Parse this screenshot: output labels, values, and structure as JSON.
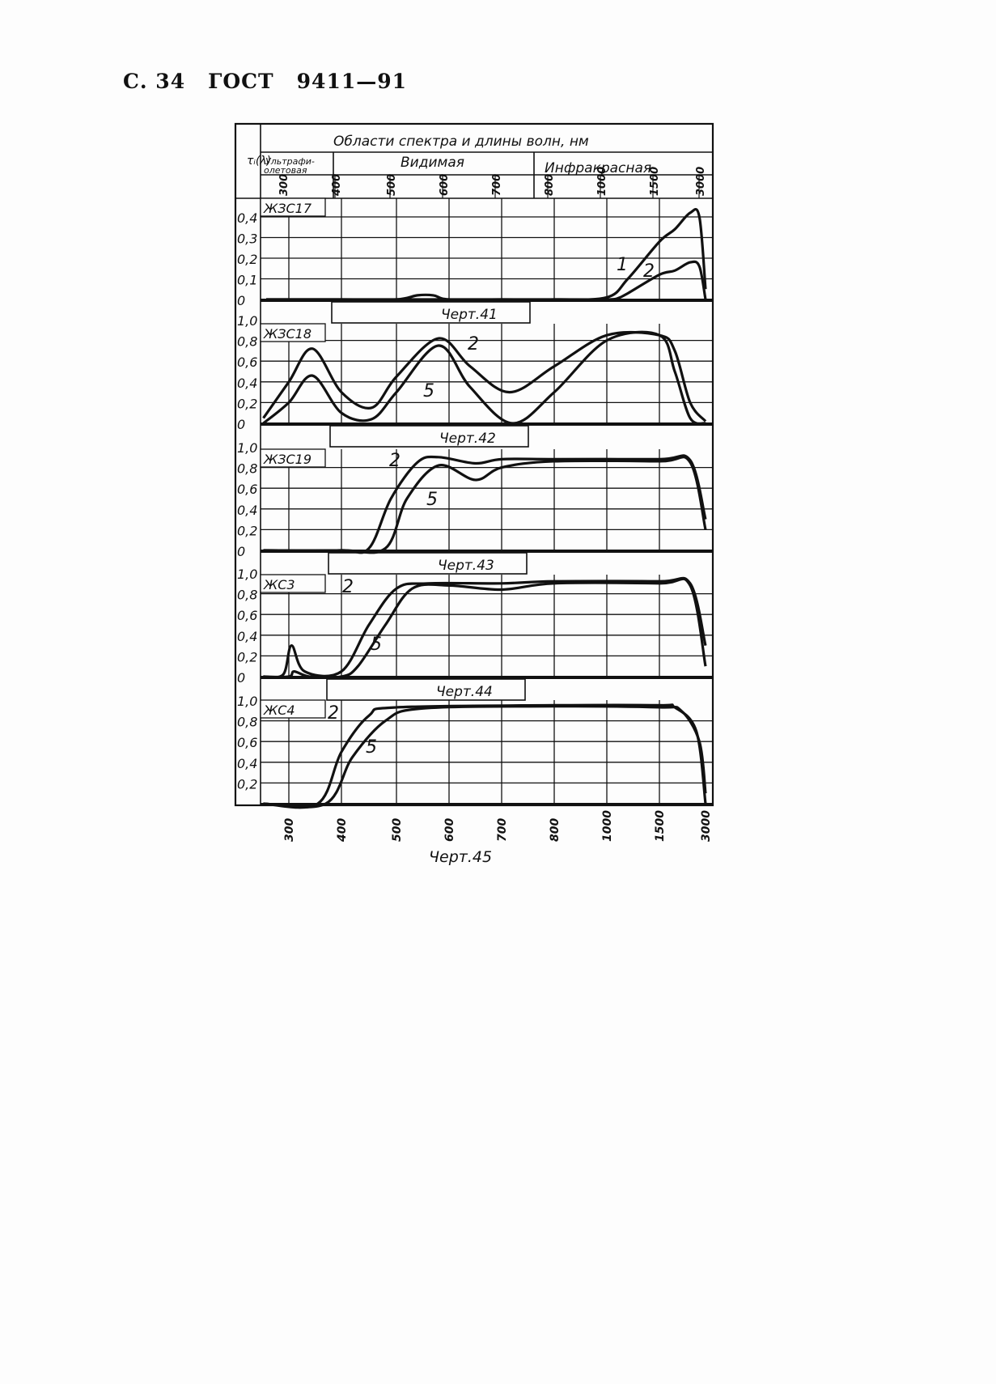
{
  "page_header": {
    "page": "С. 34",
    "standard": "ГОСТ",
    "number": "9411—91"
  },
  "table_header": {
    "y_symbol": "τᵢ(λ)",
    "title": "Области спектра и длины волн, нм",
    "regions": [
      "Ультрафи-",
      "олетовая",
      "Видимая",
      "Инфракрасная"
    ]
  },
  "x_ticks": [
    "300",
    "400",
    "500",
    "600",
    "700",
    "800",
    "1000",
    "1500",
    "3000"
  ],
  "chart_data": [
    {
      "type": "line",
      "title": "ЖЗС17",
      "caption": "Черт.41",
      "ylim": [
        0,
        0.4
      ],
      "yticks": [
        "0",
        "0,1",
        "0,2",
        "0,3",
        "0,4"
      ],
      "xlabel": "",
      "ylabel": "τᵢ(λ)",
      "grid": true,
      "x_scale": "categorical-nm",
      "xticks": [
        300,
        400,
        500,
        600,
        700,
        800,
        1000,
        1500,
        3000
      ],
      "series": [
        {
          "name": "1",
          "x": [
            260,
            400,
            500,
            540,
            570,
            600,
            700,
            800,
            1000,
            1200,
            1500,
            2000,
            2500,
            2800,
            3000
          ],
          "y": [
            0,
            0,
            0,
            0.02,
            0.02,
            0,
            0,
            0,
            0.01,
            0.1,
            0.28,
            0.34,
            0.42,
            0.4,
            0.05
          ]
        },
        {
          "name": "2",
          "x": [
            260,
            800,
            1000,
            1100,
            1200,
            1500,
            2000,
            2500,
            2800,
            3000
          ],
          "y": [
            0,
            0,
            0,
            0.005,
            0.03,
            0.12,
            0.14,
            0.18,
            0.16,
            0
          ]
        }
      ]
    },
    {
      "type": "line",
      "title": "ЖЗС18",
      "caption": "Черт.42",
      "ylim": [
        0,
        1.0
      ],
      "yticks": [
        "0",
        "0,2",
        "0,4",
        "0,6",
        "0,8",
        "1,0"
      ],
      "xlabel": "",
      "ylabel": "",
      "grid": true,
      "series": [
        {
          "name": "2",
          "x": [
            255,
            300,
            345,
            400,
            455,
            500,
            580,
            640,
            715,
            800,
            1000,
            1500,
            2000,
            2500,
            3000
          ],
          "y": [
            0.05,
            0.4,
            0.72,
            0.3,
            0.15,
            0.45,
            0.82,
            0.55,
            0.3,
            0.55,
            0.85,
            0.85,
            0.7,
            0.2,
            0.02
          ]
        },
        {
          "name": "5",
          "x": [
            255,
            300,
            345,
            400,
            455,
            500,
            580,
            640,
            720,
            800,
            1000,
            1500,
            2000,
            2500,
            3000
          ],
          "y": [
            0,
            0.2,
            0.46,
            0.1,
            0.04,
            0.3,
            0.75,
            0.35,
            0.0,
            0.3,
            0.8,
            0.85,
            0.5,
            0.05,
            0
          ]
        }
      ]
    },
    {
      "type": "line",
      "title": "ЖЗС19",
      "caption": "Черт.43",
      "ylim": [
        0,
        1.0
      ],
      "yticks": [
        "0",
        "0,2",
        "0,4",
        "0,6",
        "0,8",
        "1,0"
      ],
      "xlabel": "",
      "ylabel": "",
      "grid": true,
      "series": [
        {
          "name": "2",
          "x": [
            255,
            400,
            450,
            490,
            540,
            580,
            650,
            700,
            800,
            1500,
            2500,
            3000
          ],
          "y": [
            0,
            0,
            0.02,
            0.5,
            0.85,
            0.9,
            0.84,
            0.88,
            0.88,
            0.88,
            0.87,
            0.3
          ]
        },
        {
          "name": "5",
          "x": [
            255,
            400,
            480,
            520,
            580,
            650,
            700,
            800,
            1500,
            2500,
            3000
          ],
          "y": [
            0,
            0,
            0.02,
            0.5,
            0.82,
            0.68,
            0.8,
            0.86,
            0.86,
            0.85,
            0.2
          ]
        }
      ]
    },
    {
      "type": "line",
      "title": "ЖС3",
      "caption": "Черт.44",
      "ylim": [
        0,
        1.0
      ],
      "yticks": [
        "0",
        "0,2",
        "0,4",
        "0,6",
        "0,8",
        "1,0"
      ],
      "xlabel": "",
      "ylabel": "",
      "grid": true,
      "series": [
        {
          "name": "2",
          "x": [
            255,
            290,
            305,
            330,
            400,
            450,
            500,
            560,
            700,
            800,
            1500,
            2500,
            3000
          ],
          "y": [
            0,
            0.02,
            0.3,
            0.05,
            0.05,
            0.5,
            0.85,
            0.9,
            0.9,
            0.92,
            0.92,
            0.9,
            0.3
          ]
        },
        {
          "name": "5",
          "x": [
            255,
            300,
            310,
            340,
            400,
            430,
            480,
            530,
            600,
            700,
            800,
            1500,
            2500,
            3000
          ],
          "y": [
            0,
            0,
            0.05,
            0,
            0,
            0.1,
            0.5,
            0.85,
            0.88,
            0.84,
            0.9,
            0.9,
            0.88,
            0.1
          ]
        }
      ]
    },
    {
      "type": "line",
      "title": "ЖС4",
      "caption": "Черт.45",
      "ylim": [
        0,
        1.0
      ],
      "yticks": [
        "",
        "0,2",
        "0,4",
        "0,6",
        "0,8",
        "1,0"
      ],
      "xlabel": "",
      "ylabel": "",
      "grid": true,
      "series": [
        {
          "name": "2",
          "x": [
            255,
            355,
            400,
            450,
            500,
            800,
            1500,
            2000,
            2700,
            3000
          ],
          "y": [
            0,
            0,
            0.5,
            0.85,
            0.93,
            0.95,
            0.95,
            0.93,
            0.7,
            0
          ]
        },
        {
          "name": "5",
          "x": [
            255,
            370,
            420,
            480,
            550,
            800,
            1500,
            2200,
            2800,
            3000
          ],
          "y": [
            0,
            0,
            0.45,
            0.8,
            0.92,
            0.94,
            0.93,
            0.9,
            0.6,
            0.1
          ]
        }
      ]
    }
  ],
  "colors": {
    "ink": "#111111",
    "paper": "#fdfdfd"
  }
}
